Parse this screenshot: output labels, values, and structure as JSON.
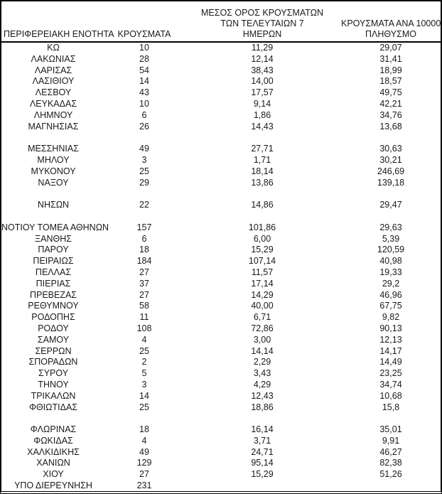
{
  "table": {
    "headers": {
      "region": "ΠΕΡΙΦΕΡΕΙΑΚΗ ΕΝΟΤΗΤΑ",
      "cases": "ΚΡΟΥΣΜΑΤΑ",
      "avg7_line1": "ΜΕΣΟΣ ΟΡΟΣ ΚΡΟΥΣΜΑΤΩΝ",
      "avg7_line2": "ΤΩΝ ΤΕΛΕΥΤΑΙΩΝ 7",
      "avg7_line3": "ΗΜΕΡΩΝ",
      "per100k_line1": "ΚΡΟΥΣΜΑΤΑ ΑΝΑ 100000",
      "per100k_line2": "ΠΛΗΘΥΣΜΟ"
    },
    "spacer_after": [
      "ΜΑΓΝΗΣΙΑΣ",
      "ΝΑΞΟΥ",
      "ΝΗΣΩΝ",
      "ΦΘΙΩΤΙΔΑΣ"
    ],
    "colors": {
      "border": "#000000",
      "text": "#1a1a1a",
      "background": "#ffffff"
    }
  },
  "chart_data": {
    "type": "table",
    "title": "",
    "columns": [
      "ΠΕΡΙΦΕΡΕΙΑΚΗ ΕΝΟΤΗΤΑ",
      "ΚΡΟΥΣΜΑΤΑ",
      "ΜΕΣΟΣ ΟΡΟΣ ΚΡΟΥΣΜΑΤΩΝ ΤΩΝ ΤΕΛΕΥΤΑΙΩΝ 7 ΗΜΕΡΩΝ",
      "ΚΡΟΥΣΜΑΤΑ ΑΝΑ 100000 ΠΛΗΘΥΣΜΟ"
    ],
    "rows": [
      [
        "ΚΩ",
        "10",
        "11,29",
        "29,07"
      ],
      [
        "ΛΑΚΩΝΙΑΣ",
        "28",
        "12,14",
        "31,41"
      ],
      [
        "ΛΑΡΙΣΑΣ",
        "54",
        "38,43",
        "18,99"
      ],
      [
        "ΛΑΣΙΘΙΟΥ",
        "14",
        "14,00",
        "18,57"
      ],
      [
        "ΛΕΣΒΟΥ",
        "43",
        "17,57",
        "49,75"
      ],
      [
        "ΛΕΥΚΑΔΑΣ",
        "10",
        "9,14",
        "42,21"
      ],
      [
        "ΛΗΜΝΟΥ",
        "6",
        "1,86",
        "34,76"
      ],
      [
        "ΜΑΓΝΗΣΙΑΣ",
        "26",
        "14,43",
        "13,68"
      ],
      [
        "ΜΕΣΣΗΝΙΑΣ",
        "49",
        "27,71",
        "30,63"
      ],
      [
        "ΜΗΛΟΥ",
        "3",
        "1,71",
        "30,21"
      ],
      [
        "ΜΥΚΟΝΟΥ",
        "25",
        "18,14",
        "246,69"
      ],
      [
        "ΝΑΞΟΥ",
        "29",
        "13,86",
        "139,18"
      ],
      [
        "ΝΗΣΩΝ",
        "22",
        "14,86",
        "29,47"
      ],
      [
        "ΝΟΤΙΟΥ ΤΟΜΕΑ ΑΘΗΝΩΝ",
        "157",
        "101,86",
        "29,63"
      ],
      [
        "ΞΑΝΘΗΣ",
        "6",
        "6,00",
        "5,39"
      ],
      [
        "ΠΑΡΟΥ",
        "18",
        "15,29",
        "120,59"
      ],
      [
        "ΠΕΙΡΑΙΩΣ",
        "184",
        "107,14",
        "40,98"
      ],
      [
        "ΠΕΛΛΑΣ",
        "27",
        "11,57",
        "19,33"
      ],
      [
        "ΠΙΕΡΙΑΣ",
        "37",
        "17,14",
        "29,2"
      ],
      [
        "ΠΡΕΒΕΖΑΣ",
        "27",
        "14,29",
        "46,96"
      ],
      [
        "ΡΕΘΥΜΝΟΥ",
        "58",
        "40,00",
        "67,75"
      ],
      [
        "ΡΟΔΟΠΗΣ",
        "11",
        "6,71",
        "9,82"
      ],
      [
        "ΡΟΔΟΥ",
        "108",
        "72,86",
        "90,13"
      ],
      [
        "ΣΑΜΟΥ",
        "4",
        "3,00",
        "12,13"
      ],
      [
        "ΣΕΡΡΩΝ",
        "25",
        "14,14",
        "14,17"
      ],
      [
        "ΣΠΟΡΑΔΩΝ",
        "2",
        "2,29",
        "14,49"
      ],
      [
        "ΣΥΡΟΥ",
        "5",
        "3,43",
        "23,25"
      ],
      [
        "ΤΗΝΟΥ",
        "3",
        "4,29",
        "34,74"
      ],
      [
        "ΤΡΙΚΑΛΩΝ",
        "14",
        "12,43",
        "10,68"
      ],
      [
        "ΦΘΙΩΤΙΔΑΣ",
        "25",
        "18,86",
        "15,8"
      ],
      [
        "ΦΛΩΡΙΝΑΣ",
        "18",
        "16,14",
        "35,01"
      ],
      [
        "ΦΩΚΙΔΑΣ",
        "4",
        "3,71",
        "9,91"
      ],
      [
        "ΧΑΛΚΙΔΙΚΗΣ",
        "49",
        "24,71",
        "46,27"
      ],
      [
        "ΧΑΝΙΩΝ",
        "129",
        "95,14",
        "82,38"
      ],
      [
        "ΧΙΟΥ",
        "27",
        "15,29",
        "51,26"
      ],
      [
        "ΥΠΟ ΔΙΕΡΕΥΝΗΣΗ",
        "231",
        "",
        ""
      ]
    ]
  }
}
